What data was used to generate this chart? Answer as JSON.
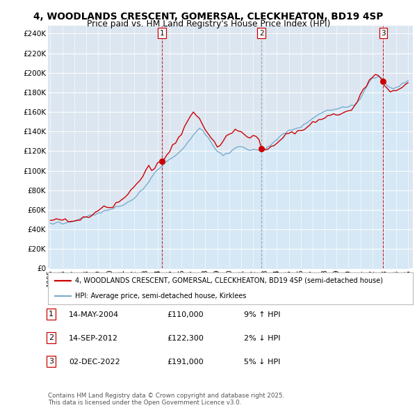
{
  "title_line1": "4, WOODLANDS CRESCENT, GOMERSAL, CLECKHEATON, BD19 4SP",
  "title_line2": "Price paid vs. HM Land Registry's House Price Index (HPI)",
  "bg_color": "#dce6f1",
  "sale_color": "#cc0000",
  "hpi_color": "#7aadcf",
  "hpi_fill": "#d6e8f5",
  "vline_color_red": "#cc0000",
  "vline_color_gray": "#8899aa",
  "ylim": [
    0,
    248000
  ],
  "yticks": [
    0,
    20000,
    40000,
    60000,
    80000,
    100000,
    120000,
    140000,
    160000,
    180000,
    200000,
    220000,
    240000
  ],
  "sale_dates": [
    2004.37,
    2012.71,
    2022.92
  ],
  "sale_prices": [
    110000,
    122300,
    191000
  ],
  "sale_labels": [
    "1",
    "2",
    "3"
  ],
  "sale_vline_styles": [
    "red",
    "gray",
    "red"
  ],
  "sale_info": [
    {
      "num": "1",
      "date": "14-MAY-2004",
      "price": "£110,000",
      "pct": "9% ↑ HPI"
    },
    {
      "num": "2",
      "date": "14-SEP-2012",
      "price": "£122,300",
      "pct": "2% ↓ HPI"
    },
    {
      "num": "3",
      "date": "02-DEC-2022",
      "price": "£191,000",
      "pct": "5% ↓ HPI"
    }
  ],
  "legend_line1": "4, WOODLANDS CRESCENT, GOMERSAL, CLECKHEATON, BD19 4SP (semi-detached house)",
  "legend_line2": "HPI: Average price, semi-detached house, Kirklees",
  "footnote": "Contains HM Land Registry data © Crown copyright and database right 2025.\nThis data is licensed under the Open Government Licence v3.0.",
  "hpi_x": [
    1995.0,
    1995.25,
    1995.5,
    1995.75,
    1996.0,
    1996.25,
    1996.5,
    1996.75,
    1997.0,
    1997.25,
    1997.5,
    1997.75,
    1998.0,
    1998.25,
    1998.5,
    1998.75,
    1999.0,
    1999.25,
    1999.5,
    1999.75,
    2000.0,
    2000.25,
    2000.5,
    2000.75,
    2001.0,
    2001.25,
    2001.5,
    2001.75,
    2002.0,
    2002.25,
    2002.5,
    2002.75,
    2003.0,
    2003.25,
    2003.5,
    2003.75,
    2004.0,
    2004.25,
    2004.5,
    2004.75,
    2005.0,
    2005.25,
    2005.5,
    2005.75,
    2006.0,
    2006.25,
    2006.5,
    2006.75,
    2007.0,
    2007.25,
    2007.5,
    2007.75,
    2008.0,
    2008.25,
    2008.5,
    2008.75,
    2009.0,
    2009.25,
    2009.5,
    2009.75,
    2010.0,
    2010.25,
    2010.5,
    2010.75,
    2011.0,
    2011.25,
    2011.5,
    2011.75,
    2012.0,
    2012.25,
    2012.5,
    2012.75,
    2013.0,
    2013.25,
    2013.5,
    2013.75,
    2014.0,
    2014.25,
    2014.5,
    2014.75,
    2015.0,
    2015.25,
    2015.5,
    2015.75,
    2016.0,
    2016.25,
    2016.5,
    2016.75,
    2017.0,
    2017.25,
    2017.5,
    2017.75,
    2018.0,
    2018.25,
    2018.5,
    2018.75,
    2019.0,
    2019.25,
    2019.5,
    2019.75,
    2020.0,
    2020.25,
    2020.5,
    2020.75,
    2021.0,
    2021.25,
    2021.5,
    2021.75,
    2022.0,
    2022.25,
    2022.5,
    2022.75,
    2023.0,
    2023.25,
    2023.5,
    2023.75,
    2024.0,
    2024.25,
    2024.5,
    2024.75,
    2025.0
  ],
  "hpi_y": [
    46000,
    46200,
    46500,
    46800,
    47000,
    47200,
    47500,
    47800,
    48500,
    49500,
    50500,
    51500,
    52500,
    53500,
    54500,
    55500,
    56500,
    57500,
    58500,
    59500,
    60500,
    61500,
    62500,
    63500,
    64500,
    66000,
    67500,
    69000,
    71000,
    74000,
    77000,
    81000,
    85000,
    89000,
    93000,
    97000,
    101000,
    104000,
    107000,
    109000,
    111000,
    113000,
    116000,
    118000,
    121000,
    124000,
    128000,
    132000,
    136000,
    140000,
    143000,
    141000,
    138000,
    134000,
    129000,
    124000,
    120000,
    117000,
    116000,
    117000,
    119000,
    121000,
    123000,
    124000,
    124000,
    123000,
    122000,
    121000,
    121000,
    121500,
    122000,
    122500,
    123000,
    124000,
    126000,
    129000,
    132000,
    135000,
    137000,
    139000,
    141000,
    142000,
    143000,
    144000,
    145000,
    147000,
    149000,
    151000,
    153000,
    155000,
    157000,
    159000,
    161000,
    162000,
    163000,
    163500,
    164000,
    164500,
    165000,
    165500,
    165500,
    166000,
    167000,
    170000,
    174000,
    180000,
    186000,
    191000,
    194000,
    196000,
    196000,
    195000,
    192000,
    188000,
    185000,
    184000,
    185000,
    186000,
    188000,
    190000,
    193000
  ],
  "red_x": [
    1995.0,
    1995.25,
    1995.5,
    1995.75,
    1996.0,
    1996.25,
    1996.5,
    1996.75,
    1997.0,
    1997.25,
    1997.5,
    1997.75,
    1998.0,
    1998.25,
    1998.5,
    1998.75,
    1999.0,
    1999.25,
    1999.5,
    1999.75,
    2000.0,
    2000.25,
    2000.5,
    2000.75,
    2001.0,
    2001.25,
    2001.5,
    2001.75,
    2002.0,
    2002.25,
    2002.5,
    2002.75,
    2003.0,
    2003.25,
    2003.5,
    2003.75,
    2004.0,
    2004.37,
    2004.5,
    2004.75,
    2005.0,
    2005.25,
    2005.5,
    2005.75,
    2006.0,
    2006.25,
    2006.5,
    2006.75,
    2007.0,
    2007.25,
    2007.5,
    2007.75,
    2008.0,
    2008.25,
    2008.5,
    2008.75,
    2009.0,
    2009.25,
    2009.5,
    2009.75,
    2010.0,
    2010.25,
    2010.5,
    2010.75,
    2011.0,
    2011.25,
    2011.5,
    2011.75,
    2012.0,
    2012.25,
    2012.5,
    2012.71,
    2012.75,
    2013.0,
    2013.25,
    2013.5,
    2013.75,
    2014.0,
    2014.25,
    2014.5,
    2014.75,
    2015.0,
    2015.25,
    2015.5,
    2015.75,
    2016.0,
    2016.25,
    2016.5,
    2016.75,
    2017.0,
    2017.25,
    2017.5,
    2017.75,
    2018.0,
    2018.25,
    2018.5,
    2018.75,
    2019.0,
    2019.25,
    2019.5,
    2019.75,
    2020.0,
    2020.25,
    2020.5,
    2020.75,
    2021.0,
    2021.25,
    2021.5,
    2021.75,
    2022.0,
    2022.25,
    2022.5,
    2022.92,
    2023.0,
    2023.25,
    2023.5,
    2023.75,
    2024.0,
    2024.25,
    2024.5,
    2024.75,
    2025.0
  ],
  "red_y": [
    49000,
    49200,
    49300,
    49100,
    49000,
    49100,
    49200,
    49000,
    49500,
    50000,
    51000,
    52000,
    53000,
    54000,
    55500,
    57000,
    58000,
    59000,
    60500,
    62000,
    63500,
    65000,
    67000,
    69000,
    71000,
    73500,
    76000,
    79000,
    83000,
    87000,
    91000,
    96000,
    101000,
    105500,
    98000,
    102000,
    107000,
    110000,
    112000,
    117000,
    120000,
    124000,
    129000,
    133000,
    138000,
    144000,
    150000,
    156000,
    160000,
    157000,
    153000,
    148000,
    143000,
    139000,
    133000,
    128000,
    124000,
    126000,
    130000,
    134000,
    137000,
    139000,
    141000,
    140000,
    138000,
    137000,
    136000,
    135000,
    134000,
    133000,
    132000,
    122300,
    122000,
    122500,
    123000,
    124000,
    126000,
    128000,
    131000,
    133000,
    136000,
    138000,
    139000,
    140000,
    141000,
    142000,
    143000,
    145000,
    147000,
    149000,
    151000,
    152000,
    153000,
    154000,
    155000,
    156000,
    156500,
    157000,
    158000,
    159000,
    160000,
    161000,
    163000,
    166000,
    170000,
    175000,
    181000,
    187000,
    193000,
    197000,
    199000,
    197000,
    191000,
    188000,
    185000,
    183000,
    182000,
    183000,
    184000,
    186000,
    188000,
    192000
  ],
  "xmin": 1994.8,
  "xmax": 2025.4
}
